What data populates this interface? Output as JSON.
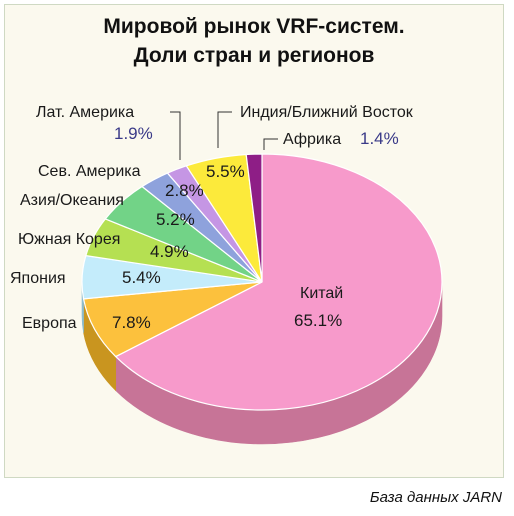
{
  "chart_data": {
    "type": "pie",
    "title": "Мировой рынок VRF-систем.\nДоли стран и регионов",
    "slices": [
      {
        "name": "Китай",
        "label": "Китай",
        "value": 65.1,
        "value_label": "65.1%",
        "color": "#f79acb",
        "dark": "#c77497"
      },
      {
        "name": "Европа",
        "label": "Европа",
        "value": 7.8,
        "value_label": "7.8%",
        "color": "#fcc13d",
        "dark": "#c9951f"
      },
      {
        "name": "Япония",
        "label": "Япония",
        "value": 5.4,
        "value_label": "5.4%",
        "color": "#c4ecfb",
        "dark": "#8cbcd0"
      },
      {
        "name": "Южная Корея",
        "label": "Южная Корея",
        "value": 4.9,
        "value_label": "4.9%",
        "color": "#b5e052",
        "dark": "#86ac33"
      },
      {
        "name": "Азия/Океания",
        "label": "Азия/Океания",
        "value": 5.2,
        "value_label": "5.2%",
        "color": "#72d387",
        "dark": "#4ea563"
      },
      {
        "name": "Сев. Америка",
        "label": "Сев. Америка",
        "value": 2.8,
        "value_label": "2.8%",
        "color": "#8ea2dc",
        "dark": "#6476ad"
      },
      {
        "name": "Лат. Америка",
        "label": "Лат. Америка",
        "value": 1.9,
        "value_label": "1.9%",
        "color": "#c596e4",
        "dark": "#946bb0"
      },
      {
        "name": "Индия/Ближний Восток",
        "label": "Индия/Ближний Восток",
        "value": 5.5,
        "value_label": "5.5%",
        "color": "#fcea3b",
        "dark": "#c9b820"
      },
      {
        "name": "Африка",
        "label": "Африка",
        "value": 1.4,
        "value_label": "1.4%",
        "color": "#8e1e86",
        "dark": "#5e1258"
      }
    ],
    "start_angle_deg": 270,
    "direction": "clockwise",
    "three_d": true,
    "legend": "none"
  },
  "source": "База данных JARN"
}
